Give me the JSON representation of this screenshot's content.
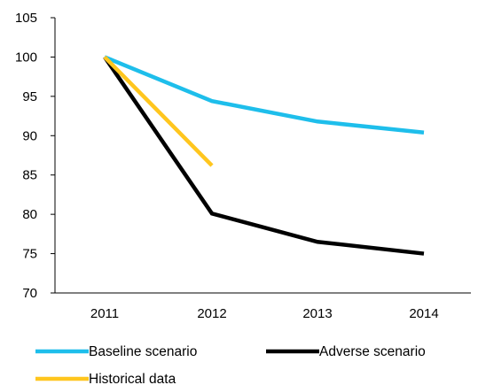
{
  "chart_data": {
    "type": "line",
    "title": "",
    "xlabel": "",
    "ylabel": "",
    "categories": [
      "2011",
      "2012",
      "2013",
      "2014"
    ],
    "ylim": [
      70,
      105
    ],
    "yticks": [
      70,
      75,
      80,
      85,
      90,
      95,
      100,
      105
    ],
    "grid": false,
    "legend_position": "bottom",
    "series": [
      {
        "name": "Baseline scenario",
        "color": "#1EBEEB",
        "values": [
          100,
          94.4,
          91.8,
          90.4
        ]
      },
      {
        "name": "Adverse scenario",
        "color": "#000000",
        "values": [
          100,
          80.1,
          76.5,
          75.0
        ]
      },
      {
        "name": "Historical data",
        "color": "#FFC61E",
        "values": [
          100,
          86.2,
          null,
          null
        ]
      }
    ]
  }
}
